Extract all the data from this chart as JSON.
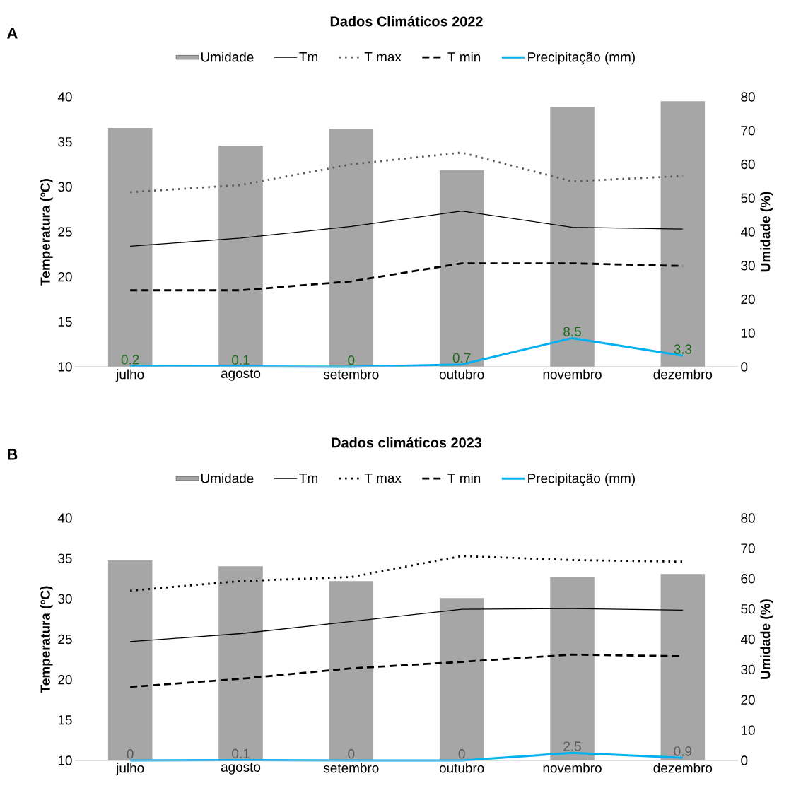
{
  "chart_data": [
    {
      "type": "bar",
      "title": "Dados Climáticos 2022",
      "annotations": [
        "A"
      ],
      "categories": [
        "julho",
        "agosto",
        "setembro",
        "outubro",
        "novembro",
        "dezembro"
      ],
      "ylabel": "Temperatura (ºC)",
      "y2label": "Umidade (%)",
      "ylim": [
        10,
        40
      ],
      "yticks": [
        10,
        15,
        20,
        25,
        30,
        35,
        40
      ],
      "y2lim": [
        0,
        80
      ],
      "y2ticks": [
        0,
        10,
        20,
        30,
        40,
        50,
        60,
        70,
        80
      ],
      "legend": "top",
      "series": [
        {
          "name": "Umidade",
          "axis": "y2",
          "color": "#a6a6a6",
          "values": [
            70.8,
            65.5,
            70.6,
            58.2,
            77,
            78.7
          ]
        },
        {
          "name": "Tm",
          "type": "line",
          "color": "#000000",
          "line_style": "solid",
          "values": [
            23.4,
            24.3,
            25.6,
            27.3,
            25.5,
            25.3
          ]
        },
        {
          "name": "T max",
          "type": "line",
          "color": "#595959",
          "line_style": "dotted",
          "values": [
            29.4,
            30.2,
            32.5,
            33.8,
            30.6,
            31.2
          ]
        },
        {
          "name": "T min",
          "type": "line",
          "color": "#000000",
          "line_style": "dashed",
          "values": [
            18.5,
            18.5,
            19.5,
            21.5,
            21.5,
            21.2
          ]
        },
        {
          "name": "Precipitação (mm)",
          "type": "line",
          "axis": "y2",
          "color": "#00b0f0",
          "line_style": "solid",
          "data_labels": true,
          "values": [
            0.2,
            0.1,
            0,
            0.7,
            8.5,
            3.3
          ]
        }
      ]
    },
    {
      "type": "bar",
      "title": "Dados climáticos 2023",
      "annotations": [
        "B"
      ],
      "categories": [
        "julho",
        "agosto",
        "setembro",
        "outubro",
        "novembro",
        "dezembro"
      ],
      "ylabel": "Temperatura (ºC)",
      "y2label": "Umidade (%)",
      "ylim": [
        10,
        40
      ],
      "yticks": [
        10,
        15,
        20,
        25,
        30,
        35,
        40
      ],
      "y2lim": [
        0,
        80
      ],
      "y2ticks": [
        0,
        10,
        20,
        30,
        40,
        50,
        60,
        70,
        80
      ],
      "legend": "top",
      "series": [
        {
          "name": "Umidade",
          "axis": "y2",
          "color": "#a6a6a6",
          "values": [
            66,
            64.1,
            59.2,
            53.6,
            60.6,
            61.5
          ]
        },
        {
          "name": "Tm",
          "type": "line",
          "color": "#000000",
          "line_style": "solid",
          "values": [
            24.7,
            25.7,
            27.2,
            28.7,
            28.8,
            28.6
          ]
        },
        {
          "name": "T max",
          "type": "line",
          "color": "#000000",
          "line_style": "dotted",
          "values": [
            31.0,
            32.2,
            32.7,
            35.3,
            34.8,
            34.6
          ]
        },
        {
          "name": "T min",
          "type": "line",
          "color": "#000000",
          "line_style": "dashed",
          "values": [
            19.1,
            20.1,
            21.4,
            22.2,
            23.1,
            22.9
          ]
        },
        {
          "name": "Precipitação (mm)",
          "type": "line",
          "axis": "y2",
          "color": "#00b0f0",
          "line_style": "solid",
          "data_labels": true,
          "values": [
            0,
            0.1,
            0,
            0,
            2.5,
            0.9
          ]
        }
      ]
    }
  ]
}
